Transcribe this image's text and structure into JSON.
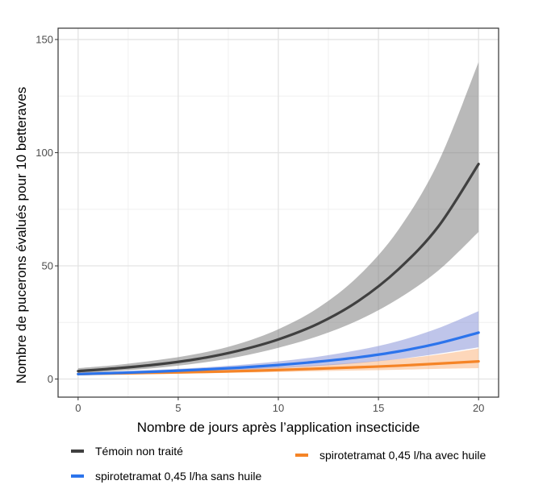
{
  "chart_data": {
    "type": "line",
    "title": "",
    "xlabel": "Nombre de jours après l’application insecticide",
    "ylabel": "Nombre de pucerons évalués pour 10 betteraves",
    "xlim": [
      -1,
      21
    ],
    "ylim": [
      -8,
      155
    ],
    "xticks": [
      0,
      5,
      10,
      15,
      20
    ],
    "xtick_labels": [
      "0",
      "5",
      "10",
      "15",
      "20"
    ],
    "yticks": [
      0,
      50,
      100,
      150
    ],
    "ytick_labels": [
      "0",
      "50",
      "100",
      "150"
    ],
    "grid": true,
    "legend_position": "bottom",
    "series": [
      {
        "name": "Témoin non traité",
        "color": "#404040",
        "band_color": "#808080",
        "x": [
          0,
          2,
          4,
          6,
          8,
          10,
          12,
          14,
          16,
          18,
          20
        ],
        "y": [
          3.5,
          4.8,
          6.5,
          8.9,
          12.5,
          17.5,
          24.5,
          34.5,
          48.5,
          67.5,
          95
        ],
        "lower": [
          2.5,
          3.6,
          5.0,
          7.0,
          9.8,
          13.8,
          19.0,
          26.0,
          35.5,
          48.0,
          65
        ],
        "upper": [
          4.8,
          6.3,
          8.4,
          11.2,
          15.5,
          22.0,
          31.5,
          45.5,
          66.0,
          96.0,
          140
        ]
      },
      {
        "name": "spirotetramat 0,45 l/ha avec huile",
        "color": "#f58426",
        "band_color": "#fbb782",
        "x": [
          0,
          2,
          4,
          6,
          8,
          10,
          12,
          14,
          16,
          18,
          20
        ],
        "y": [
          2.2,
          2.5,
          2.8,
          3.1,
          3.5,
          4.0,
          4.6,
          5.2,
          5.9,
          6.8,
          7.8
        ],
        "lower": [
          1.7,
          2.0,
          2.2,
          2.5,
          2.8,
          3.1,
          3.5,
          3.8,
          4.1,
          4.5,
          4.8
        ],
        "upper": [
          2.9,
          3.2,
          3.6,
          4.0,
          4.6,
          5.3,
          6.2,
          7.4,
          8.8,
          10.8,
          13.5
        ]
      },
      {
        "name": "spirotetramat 0,45 l/ha sans huile",
        "color": "#2c74ec",
        "band_color": "#8a95d8",
        "x": [
          0,
          2,
          4,
          6,
          8,
          10,
          12,
          14,
          16,
          18,
          20
        ],
        "y": [
          2.2,
          2.7,
          3.3,
          4.1,
          5.0,
          6.2,
          7.7,
          9.6,
          12.2,
          15.8,
          20.5
        ],
        "lower": [
          1.7,
          2.2,
          2.7,
          3.3,
          4.0,
          4.8,
          5.8,
          7.1,
          8.8,
          11.2,
          14.0
        ],
        "upper": [
          2.8,
          3.4,
          4.1,
          5.0,
          6.2,
          7.8,
          9.9,
          12.8,
          16.8,
          22.5,
          30.0
        ]
      }
    ]
  }
}
